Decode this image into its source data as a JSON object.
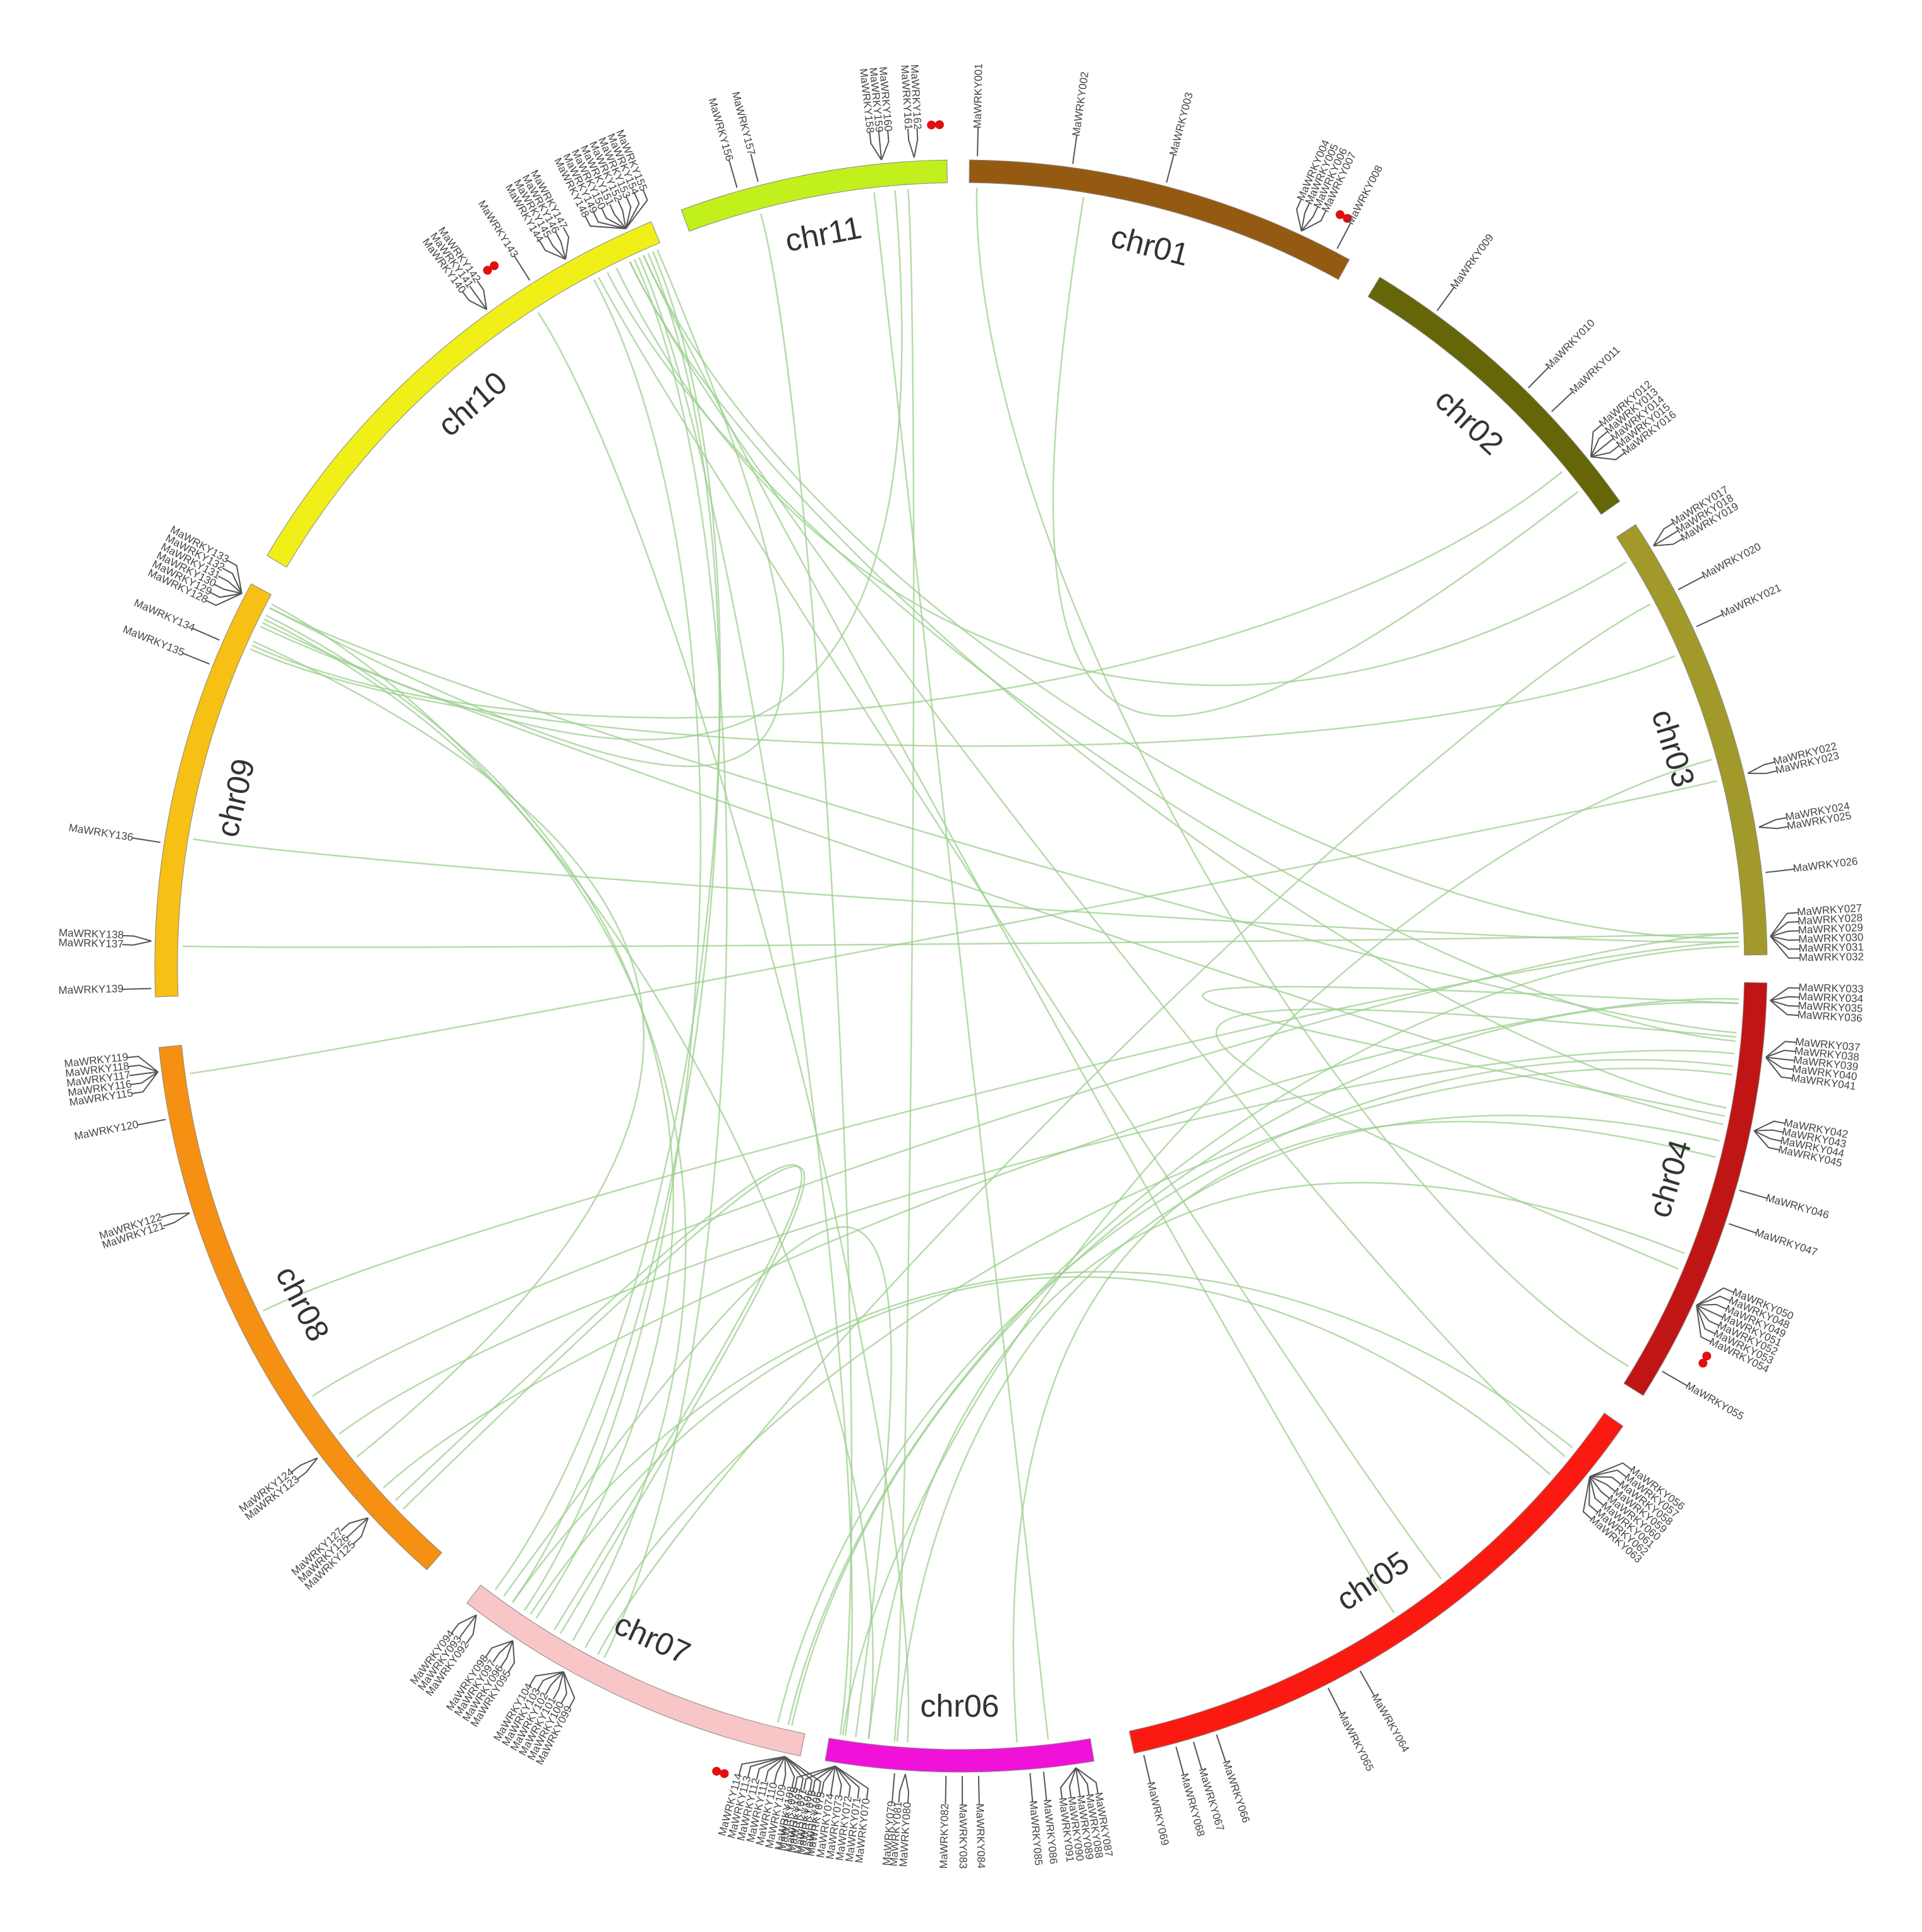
{
  "colors": {
    "link": "#9ccf8f",
    "tandem_dot": "#e01010",
    "label": "#444444"
  },
  "chromosomes": [
    {
      "name": "chr01",
      "color": "#955a12"
    },
    {
      "name": "chr02",
      "color": "#646608"
    },
    {
      "name": "chr03",
      "color": "#a19a2a"
    },
    {
      "name": "chr04",
      "color": "#c01515"
    },
    {
      "name": "chr05",
      "color": "#fb1a12"
    },
    {
      "name": "chr06",
      "color": "#f012d8"
    },
    {
      "name": "chr07",
      "color": "#f8c6c6"
    },
    {
      "name": "chr08",
      "color": "#f59012"
    },
    {
      "name": "chr09",
      "color": "#f6c014"
    },
    {
      "name": "chr10",
      "color": "#f0f018"
    },
    {
      "name": "chr11",
      "color": "#c2f01c"
    }
  ],
  "genes": [
    {
      "chr": 0,
      "pos": 0.02,
      "names": [
        "MaWRKY001"
      ]
    },
    {
      "chr": 0,
      "pos": 0.26,
      "names": [
        "MaWRKY002"
      ]
    },
    {
      "chr": 0,
      "pos": 0.5,
      "names": [
        "MaWRKY003"
      ]
    },
    {
      "chr": 0,
      "pos": 0.86,
      "names": [
        "MaWRKY004",
        "MaWRKY005",
        "MaWRKY006",
        "MaWRKY007"
      ],
      "tandem": true
    },
    {
      "chr": 0,
      "pos": 0.96,
      "names": [
        "MaWRKY008"
      ]
    },
    {
      "chr": 1,
      "pos": 0.2,
      "names": [
        "MaWRKY009"
      ]
    },
    {
      "chr": 1,
      "pos": 0.56,
      "names": [
        "MaWRKY010"
      ]
    },
    {
      "chr": 1,
      "pos": 0.66,
      "names": [
        "MaWRKY011"
      ]
    },
    {
      "chr": 1,
      "pos": 0.84,
      "names": [
        "MaWRKY012",
        "MaWRKY013",
        "MaWRKY014",
        "MaWRKY015",
        "MaWRKY016"
      ]
    },
    {
      "chr": 2,
      "pos": 0.06,
      "names": [
        "MaWRKY017",
        "MaWRKY018",
        "MaWRKY019"
      ]
    },
    {
      "chr": 2,
      "pos": 0.17,
      "names": [
        "MaWRKY020"
      ]
    },
    {
      "chr": 2,
      "pos": 0.26,
      "names": [
        "MaWRKY021"
      ]
    },
    {
      "chr": 2,
      "pos": 0.6,
      "names": [
        "MaWRKY022",
        "MaWRKY023"
      ]
    },
    {
      "chr": 2,
      "pos": 0.72,
      "names": [
        "MaWRKY024",
        "MaWRKY025"
      ]
    },
    {
      "chr": 2,
      "pos": 0.82,
      "names": [
        "MaWRKY026"
      ]
    },
    {
      "chr": 2,
      "pos": 0.96,
      "names": [
        "MaWRKY027",
        "MaWRKY028",
        "MaWRKY029",
        "MaWRKY030",
        "MaWRKY031",
        "MaWRKY032"
      ]
    },
    {
      "chr": 3,
      "pos": 0.04,
      "names": [
        "MaWRKY033",
        "MaWRKY034",
        "MaWRKY035",
        "MaWRKY036"
      ]
    },
    {
      "chr": 3,
      "pos": 0.17,
      "names": [
        "MaWRKY037",
        "MaWRKY038",
        "MaWRKY039",
        "MaWRKY040",
        "MaWRKY041"
      ]
    },
    {
      "chr": 3,
      "pos": 0.34,
      "names": [
        "MaWRKY042",
        "MaWRKY043",
        "MaWRKY044",
        "MaWRKY045"
      ]
    },
    {
      "chr": 3,
      "pos": 0.48,
      "names": [
        "MaWRKY046"
      ]
    },
    {
      "chr": 3,
      "pos": 0.56,
      "names": [
        "MaWRKY047"
      ]
    },
    {
      "chr": 3,
      "pos": 0.76,
      "names": [
        "MaWRKY050",
        "MaWRKY048",
        "MaWRKY049",
        "MaWRKY051",
        "MaWRKY052",
        "MaWRKY053",
        "MaWRKY054"
      ],
      "tandem": true
    },
    {
      "chr": 3,
      "pos": 0.93,
      "names": [
        "MaWRKY055"
      ]
    },
    {
      "chr": 4,
      "pos": 0.1,
      "names": [
        "MaWRKY056",
        "MaWRKY057",
        "MaWRKY058",
        "MaWRKY059",
        "MaWRKY060",
        "MaWRKY061",
        "MaWRKY062",
        "MaWRKY063"
      ]
    },
    {
      "chr": 4,
      "pos": 0.6,
      "names": [
        "MaWRKY064"
      ]
    },
    {
      "chr": 4,
      "pos": 0.66,
      "names": [
        "MaWRKY065"
      ]
    },
    {
      "chr": 4,
      "pos": 0.86,
      "names": [
        "MaWRKY066"
      ]
    },
    {
      "chr": 4,
      "pos": 0.9,
      "names": [
        "MaWRKY067"
      ]
    },
    {
      "chr": 4,
      "pos": 0.93,
      "names": [
        "MaWRKY068"
      ]
    },
    {
      "chr": 4,
      "pos": 0.985,
      "names": [
        "MaWRKY069"
      ]
    },
    {
      "chr": 5,
      "pos": 0.96,
      "names": [
        "MaWRKY070",
        "MaWRKY071",
        "MaWRKY072",
        "MaWRKY073",
        "MaWRKY074",
        "MaWRKY075",
        "MaWRKY076",
        "MaWRKY077",
        "MaWRKY078"
      ]
    },
    {
      "chr": 5,
      "pos": 0.74,
      "names": [
        "MaWRKY079"
      ]
    },
    {
      "chr": 5,
      "pos": 0.7,
      "names": [
        "MaWRKY080",
        "MaWRKY081"
      ]
    },
    {
      "chr": 5,
      "pos": 0.55,
      "names": [
        "MaWRKY082"
      ]
    },
    {
      "chr": 5,
      "pos": 0.49,
      "names": [
        "MaWRKY083"
      ]
    },
    {
      "chr": 5,
      "pos": 0.43,
      "names": [
        "MaWRKY084"
      ]
    },
    {
      "chr": 5,
      "pos": 0.24,
      "names": [
        "MaWRKY085"
      ]
    },
    {
      "chr": 5,
      "pos": 0.19,
      "names": [
        "MaWRKY086"
      ]
    },
    {
      "chr": 5,
      "pos": 0.07,
      "names": [
        "MaWRKY087",
        "MaWRKY088",
        "MaWRKY089",
        "MaWRKY090",
        "MaWRKY091"
      ]
    },
    {
      "chr": 6,
      "pos": 0.96,
      "names": [
        "MaWRKY092",
        "MaWRKY093",
        "MaWRKY094"
      ]
    },
    {
      "chr": 6,
      "pos": 0.84,
      "names": [
        "MaWRKY095",
        "MaWRKY096",
        "MaWRKY097",
        "MaWRKY098"
      ]
    },
    {
      "chr": 6,
      "pos": 0.68,
      "names": [
        "MaWRKY099",
        "MaWRKY100",
        "MaWRKY101",
        "MaWRKY102",
        "MaWRKY103",
        "MaWRKY104"
      ]
    },
    {
      "chr": 6,
      "pos": 0.04,
      "names": [
        "MaWRKY105",
        "MaWRKY106",
        "MaWRKY107",
        "MaWRKY108",
        "MaWRKY109",
        "MaWRKY110",
        "MaWRKY111",
        "MaWRKY112",
        "MaWRKY113",
        "MaWRKY114"
      ],
      "tandem": true
    },
    {
      "chr": 7,
      "pos": 0.96,
      "names": [
        "MaWRKY115",
        "MaWRKY116",
        "MaWRKY117",
        "MaWRKY118",
        "MaWRKY119"
      ]
    },
    {
      "chr": 7,
      "pos": 0.88,
      "names": [
        "MaWRKY120"
      ]
    },
    {
      "chr": 7,
      "pos": 0.72,
      "names": [
        "MaWRKY121",
        "MaWRKY122"
      ]
    },
    {
      "chr": 7,
      "pos": 0.26,
      "names": [
        "MaWRKY123",
        "MaWRKY124"
      ]
    },
    {
      "chr": 7,
      "pos": 0.13,
      "names": [
        "MaWRKY125",
        "MaWRKY126",
        "MaWRKY127"
      ]
    },
    {
      "chr": 8,
      "pos": 0.97,
      "names": [
        "MaWRKY128",
        "MaWRKY129",
        "MaWRKY130",
        "MaWRKY131",
        "MaWRKY132",
        "MaWRKY133"
      ]
    },
    {
      "chr": 8,
      "pos": 0.85,
      "names": [
        "MaWRKY134"
      ]
    },
    {
      "chr": 8,
      "pos": 0.79,
      "names": [
        "MaWRKY135"
      ]
    },
    {
      "chr": 8,
      "pos": 0.36,
      "names": [
        "MaWRKY136"
      ]
    },
    {
      "chr": 8,
      "pos": 0.13,
      "names": [
        "MaWRKY137",
        "MaWRKY138"
      ]
    },
    {
      "chr": 8,
      "pos": 0.02,
      "names": [
        "MaWRKY139"
      ]
    },
    {
      "chr": 9,
      "pos": 0.64,
      "names": [
        "MaWRKY140",
        "MaWRKY141",
        "MaWRKY142"
      ],
      "tandem": true
    },
    {
      "chr": 9,
      "pos": 0.74,
      "names": [
        "MaWRKY143"
      ]
    },
    {
      "chr": 9,
      "pos": 0.82,
      "names": [
        "MaWRKY144",
        "MaWRKY145",
        "MaWRKY146",
        "MaWRKY147"
      ]
    },
    {
      "chr": 9,
      "pos": 0.95,
      "names": [
        "MaWRKY148",
        "MaWRKY149",
        "MaWRKY150",
        "MaWRKY151",
        "MaWRKY152",
        "MaWRKY153",
        "MaWRKY154",
        "MaWRKY155"
      ]
    },
    {
      "chr": 10,
      "pos": 0.22,
      "names": [
        "MaWRKY156"
      ]
    },
    {
      "chr": 10,
      "pos": 0.3,
      "names": [
        "MaWRKY157"
      ]
    },
    {
      "chr": 10,
      "pos": 0.76,
      "names": [
        "MaWRKY158",
        "MaWRKY159",
        "MaWRKY160"
      ]
    },
    {
      "chr": 10,
      "pos": 0.88,
      "names": [
        "MaWRKY161",
        "MaWRKY162"
      ],
      "tandem": true
    }
  ],
  "links": [
    [
      0,
      0.02,
      3,
      0.96
    ],
    [
      1,
      0.9,
      0,
      0.3
    ],
    [
      1,
      0.82,
      8,
      0.87
    ],
    [
      2,
      0.06,
      9,
      0.9
    ],
    [
      2,
      0.17,
      6,
      0.62
    ],
    [
      2,
      0.3,
      8,
      0.86
    ],
    [
      2,
      0.55,
      5,
      0.95
    ],
    [
      2,
      0.6,
      7,
      0.95
    ],
    [
      2,
      0.96,
      9,
      0.96
    ],
    [
      2,
      0.95,
      8,
      0.12
    ],
    [
      2,
      0.97,
      8,
      0.38
    ],
    [
      2,
      0.98,
      6,
      0.05
    ],
    [
      2,
      0.97,
      7,
      0.52
    ],
    [
      3,
      0.04,
      7,
      0.15
    ],
    [
      3,
      0.05,
      6,
      0.04
    ],
    [
      3,
      0.12,
      8,
      0.97
    ],
    [
      3,
      0.14,
      9,
      0.88
    ],
    [
      3,
      0.17,
      7,
      0.27
    ],
    [
      3,
      0.2,
      6,
      0.08
    ],
    [
      3,
      0.22,
      6,
      0.66
    ],
    [
      3,
      0.34,
      8,
      0.92
    ],
    [
      3,
      0.38,
      5,
      0.74
    ],
    [
      3,
      0.66,
      5,
      0.85
    ],
    [
      3,
      0.05,
      3,
      0.32
    ],
    [
      3,
      0.7,
      3,
      0.13
    ],
    [
      4,
      0.1,
      9,
      0.93
    ],
    [
      4,
      0.14,
      6,
      0.84
    ],
    [
      4,
      0.4,
      9,
      0.86
    ],
    [
      5,
      0.96,
      10,
      0.28
    ],
    [
      5,
      0.94,
      9,
      0.95
    ],
    [
      5,
      0.9,
      6,
      0.93
    ],
    [
      5,
      0.85,
      8,
      0.98
    ],
    [
      5,
      0.7,
      9,
      0.72
    ],
    [
      5,
      0.16,
      10,
      0.72
    ],
    [
      5,
      0.28,
      3,
      0.42
    ],
    [
      6,
      0.96,
      9,
      0.98
    ],
    [
      6,
      0.86,
      9,
      0.85
    ],
    [
      6,
      0.82,
      8,
      0.95
    ],
    [
      6,
      0.7,
      8,
      0.94
    ],
    [
      6,
      0.9,
      4,
      0.08
    ],
    [
      6,
      0.74,
      7,
      0.1
    ],
    [
      6,
      0.6,
      9,
      0.94
    ],
    [
      7,
      0.12,
      6,
      0.76
    ],
    [
      7,
      0.35,
      2,
      0.95
    ],
    [
      8,
      0.88,
      7,
      0.22
    ],
    [
      8,
      0.97,
      9,
      0.99
    ],
    [
      9,
      0.97,
      6,
      0.9
    ],
    [
      9,
      0.96,
      4,
      0.5
    ],
    [
      9,
      0.93,
      3,
      0.3
    ],
    [
      10,
      0.8,
      8,
      0.93
    ],
    [
      10,
      0.85,
      5,
      0.75
    ]
  ]
}
